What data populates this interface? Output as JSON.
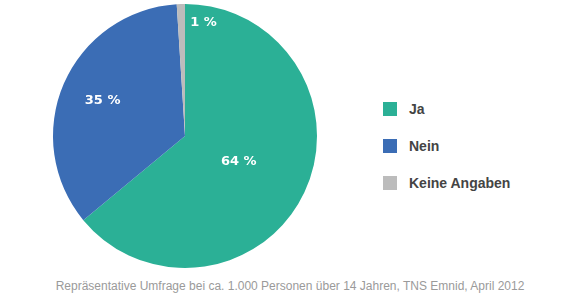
{
  "chart_data": {
    "type": "pie",
    "categories": [
      "Ja",
      "Nein",
      "Keine Angaben"
    ],
    "values": [
      64,
      35,
      1
    ],
    "value_labels": [
      "64 %",
      "35 %",
      "1 %"
    ],
    "colors": [
      "#2bb096",
      "#3b6db5",
      "#bcbcbc"
    ],
    "data_labels": true,
    "legend": "right",
    "caption": "Repräsentative Umfrage bei ca. 1.000 Personen über 14 Jahren, TNS Emnid, April 2012"
  }
}
